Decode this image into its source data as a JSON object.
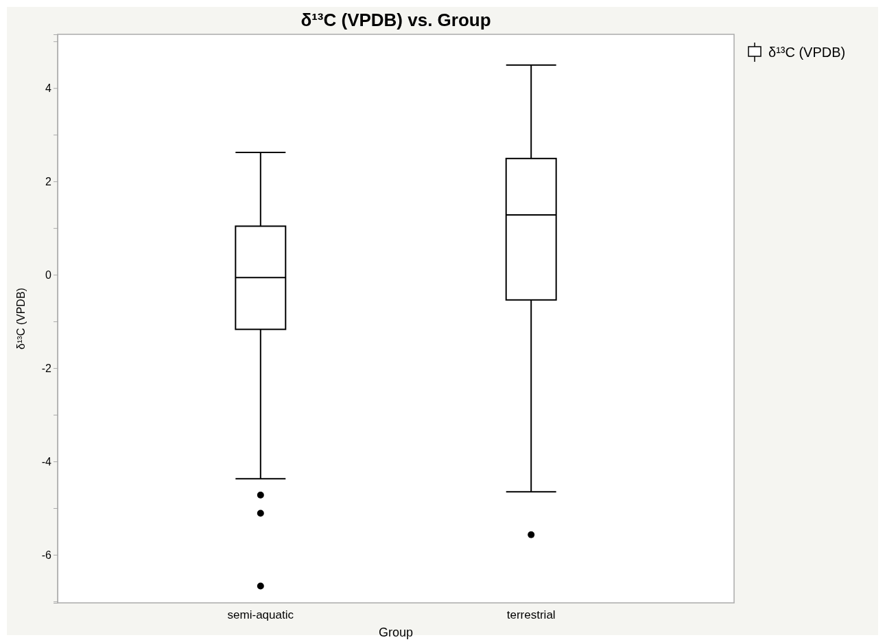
{
  "chart_data": {
    "type": "box",
    "title": "δ¹³C (VPDB) vs. Group",
    "xlabel": "Group",
    "ylabel": "δ¹³C (VPDB)",
    "categories": [
      "semi-aquatic",
      "terrestrial"
    ],
    "series": [
      {
        "name": "δ¹³C (VPDB)",
        "color": "#000000",
        "boxes": [
          {
            "low": -4.37,
            "q1": -1.17,
            "median": -0.06,
            "q3": 1.04,
            "high": 2.62,
            "outliers": [
              -4.72,
              -5.11,
              -6.67
            ]
          },
          {
            "low": -4.65,
            "q1": -0.54,
            "median": 1.28,
            "q3": 2.49,
            "high": 4.49,
            "outliers": [
              -5.57
            ]
          }
        ]
      }
    ],
    "ylim": [
      -7.03,
      5.15
    ],
    "yticks": [
      {
        "value": -7,
        "label": null
      },
      -6,
      {
        "value": -5,
        "label": null
      },
      -4,
      {
        "value": -3,
        "label": null
      },
      -2,
      {
        "value": -1,
        "label": null
      },
      0,
      {
        "value": 1,
        "label": null
      },
      2,
      {
        "value": 3,
        "label": null
      },
      4,
      {
        "value": 5,
        "label": null
      }
    ],
    "legend": "top right",
    "grid": false
  }
}
